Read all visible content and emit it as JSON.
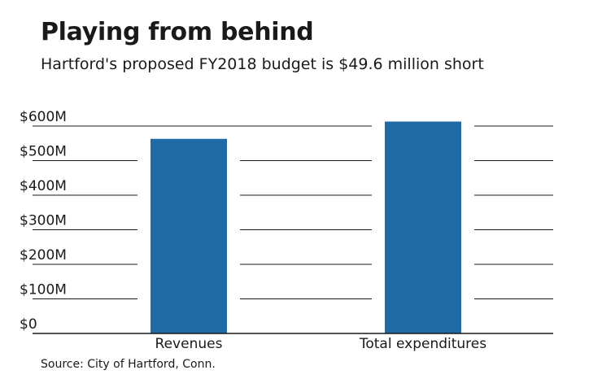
{
  "title": "Playing from behind",
  "subtitle": "Hartford's proposed FY2018 budget is $49.6 million short",
  "source": "Source: City of Hartford, Conn.",
  "colors": {
    "bar": "#1f6aa5",
    "grid": "#1a1a1a",
    "text": "#1a1a1a"
  },
  "chart_data": {
    "type": "bar",
    "categories": [
      "Revenues",
      "Total expenditures"
    ],
    "values": [
      563,
      613
    ],
    "ylim": [
      0,
      600
    ],
    "yticks": [
      0,
      100,
      200,
      300,
      400,
      500,
      600
    ],
    "ytick_labels": [
      "$0",
      "$100M",
      "$200M",
      "$300M",
      "$400M",
      "$500M",
      "$600M"
    ],
    "grid": true,
    "legend": "none"
  }
}
